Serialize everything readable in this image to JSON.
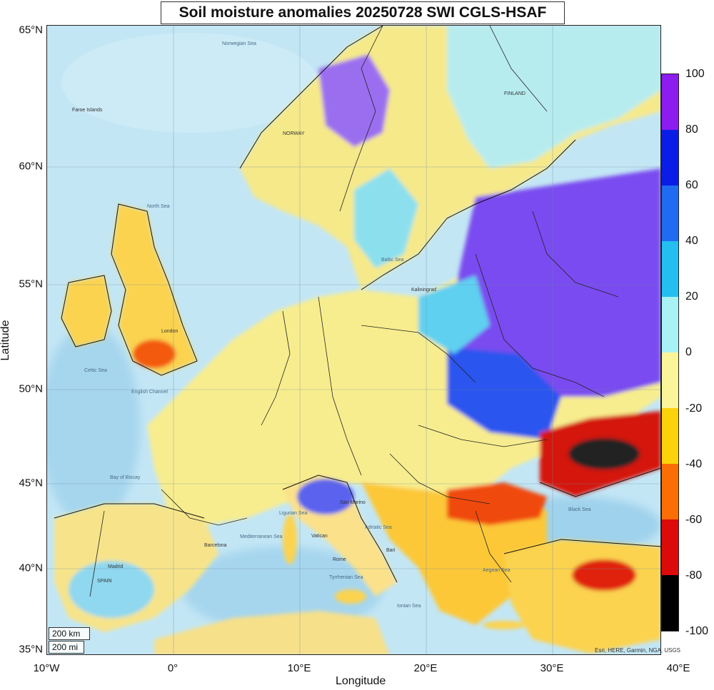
{
  "title": "Soil moisture anomalies 20250728 SWI CGLS-HSAF",
  "axes": {
    "xlabel": "Longitude",
    "ylabel": "Latitude",
    "x_ticks": [
      "10°W",
      "0°",
      "10°E",
      "20°E",
      "30°E",
      "40°E"
    ],
    "y_ticks": [
      "65°N",
      "60°N",
      "55°N",
      "50°N",
      "45°N",
      "40°N",
      "35°N"
    ]
  },
  "colorbar": {
    "ticks": [
      "100",
      "80",
      "60",
      "40",
      "20",
      "0",
      "-20",
      "-40",
      "-60",
      "-80",
      "-100"
    ],
    "colors": [
      "#8c1cf0",
      "#0a1de6",
      "#1f6cf2",
      "#22bff0",
      "#a8f2f5",
      "#fbf59a",
      "#fcd20a",
      "#fb6d05",
      "#dd0a0a",
      "#000000"
    ]
  },
  "scale_bar": {
    "km": "200 km",
    "mi": "200 mi"
  },
  "attribution": "Esri, HERE, Garmin, NGA, USGS",
  "colors": {
    "sea": "#b7dff2",
    "deep_sea": "#8fcbe9",
    "no_data_land": "#e6ede8"
  },
  "sea_labels": [
    "Norwegian Sea",
    "North Sea",
    "Baltic Sea",
    "Bay of Biscay",
    "Mediterranean Sea",
    "Black Sea",
    "Tyrrhenian Sea",
    "Ligurian Sea",
    "Adriatic Sea",
    "Ionian Sea",
    "Aegean Sea",
    "Celtic Sea",
    "English Channel"
  ],
  "country_labels": [
    "NORWAY",
    "FINLAND",
    "SPAIN",
    "Madrid",
    "London",
    "Rome",
    "Kaliningrad",
    "San Marino",
    "Vatican",
    "Barcelona",
    "Bari",
    "Faroe Islands"
  ]
}
